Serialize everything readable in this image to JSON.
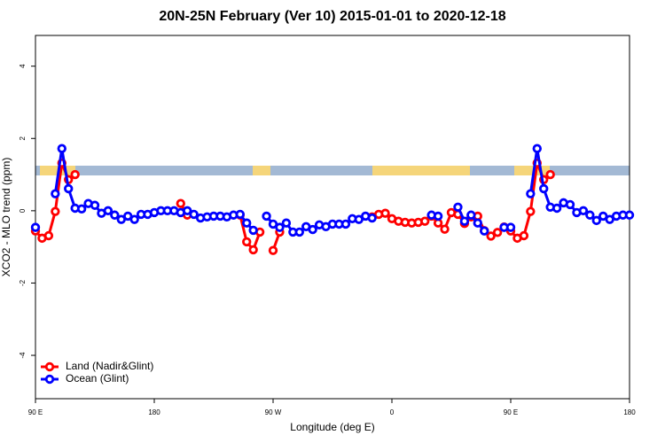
{
  "chart_data": {
    "type": "line",
    "title": "20N-25N February (Ver 10)   2015-01-01 to 2020-12-18",
    "xlabel": "Longitude (deg E)",
    "ylabel": "XCO2 - MLO trend (ppm)",
    "x": [
      90,
      95,
      100,
      105,
      110,
      115,
      120,
      125,
      130,
      135,
      140,
      145,
      150,
      155,
      160,
      165,
      170,
      175,
      180,
      185,
      190,
      195,
      200,
      205,
      210,
      215,
      220,
      225,
      230,
      235,
      240,
      245,
      250,
      255,
      260,
      265,
      270,
      275,
      280,
      285,
      290,
      295,
      300,
      305,
      310,
      315,
      320,
      325,
      330,
      335,
      340,
      345,
      350,
      355,
      360,
      365,
      370,
      375,
      380,
      385,
      390,
      395,
      400,
      405,
      410,
      415,
      420,
      425,
      430,
      435,
      440,
      445,
      450,
      455,
      460,
      465,
      470,
      475,
      480,
      485,
      490,
      495,
      500,
      505,
      510,
      515,
      520,
      525,
      530,
      535,
      540
    ],
    "xlim": [
      90,
      540
    ],
    "xticks": [
      {
        "value": 90,
        "label": "90 E"
      },
      {
        "value": 180,
        "label": "180"
      },
      {
        "value": 270,
        "label": "90 W"
      },
      {
        "value": 360,
        "label": "0"
      },
      {
        "value": 450,
        "label": "90 E"
      },
      {
        "value": 540,
        "label": "180"
      }
    ],
    "ylim": [
      -5.2,
      4.85
    ],
    "yticks": [
      -4,
      -2,
      0,
      2,
      4
    ],
    "legend": "bottom-left",
    "series": [
      {
        "name": "Land (Nadir&Glint)",
        "color": "#ff0000",
        "values": [
          -0.56,
          -0.76,
          -0.69,
          -0.02,
          1.32,
          0.86,
          1.0,
          null,
          null,
          null,
          null,
          null,
          null,
          null,
          null,
          null,
          null,
          null,
          null,
          null,
          null,
          null,
          0.2,
          -0.12,
          null,
          null,
          null,
          null,
          null,
          null,
          null,
          -0.12,
          -0.86,
          -1.08,
          -0.59,
          null,
          -1.1,
          -0.59,
          null,
          null,
          null,
          null,
          null,
          null,
          null,
          null,
          null,
          null,
          null,
          null,
          null,
          -0.17,
          -0.1,
          -0.07,
          -0.22,
          -0.29,
          -0.32,
          -0.34,
          -0.32,
          -0.29,
          -0.15,
          -0.34,
          -0.51,
          -0.05,
          -0.1,
          -0.35,
          -0.17,
          -0.15,
          -0.55,
          -0.7,
          -0.6,
          -0.45,
          -0.56,
          -0.76,
          -0.69,
          -0.02,
          1.32,
          0.86,
          1.0,
          null,
          null,
          null,
          null,
          null,
          null,
          null,
          null,
          null,
          null,
          null,
          null
        ]
      },
      {
        "name": "Ocean (Glint)",
        "color": "#0000ff",
        "values": [
          -0.46,
          null,
          null,
          0.47,
          1.72,
          0.61,
          0.07,
          0.05,
          0.2,
          0.15,
          -0.07,
          0.0,
          -0.12,
          -0.24,
          -0.15,
          -0.24,
          -0.1,
          -0.1,
          -0.05,
          0.0,
          0.0,
          0.0,
          -0.05,
          0.0,
          -0.1,
          -0.2,
          -0.17,
          -0.15,
          -0.15,
          -0.17,
          -0.12,
          -0.1,
          -0.34,
          -0.54,
          null,
          -0.15,
          -0.37,
          -0.46,
          -0.34,
          -0.59,
          -0.59,
          -0.44,
          -0.52,
          -0.39,
          -0.44,
          -0.37,
          -0.37,
          -0.37,
          -0.22,
          -0.24,
          -0.15,
          -0.2,
          null,
          null,
          null,
          null,
          null,
          null,
          null,
          null,
          -0.12,
          -0.15,
          null,
          null,
          0.1,
          -0.29,
          -0.12,
          -0.34,
          -0.56,
          null,
          null,
          -0.46,
          -0.46,
          null,
          null,
          0.47,
          1.72,
          0.61,
          0.1,
          0.07,
          0.22,
          0.17,
          -0.05,
          0.0,
          -0.12,
          -0.27,
          -0.15,
          -0.24,
          -0.15,
          -0.12,
          -0.12
        ]
      }
    ]
  }
}
